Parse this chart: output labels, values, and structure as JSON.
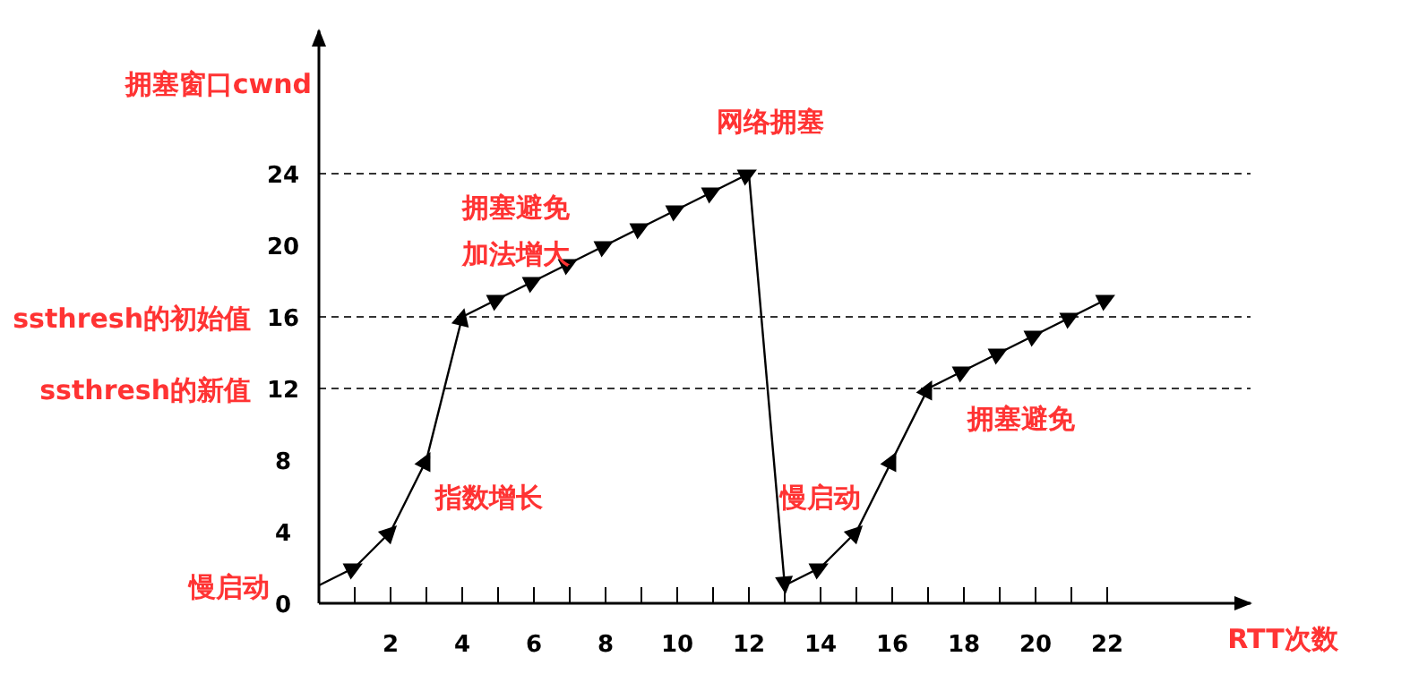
{
  "chart_data": {
    "type": "line",
    "xlabel": "RTT次数",
    "ylabel": "拥塞窗口cwnd",
    "x": [
      0,
      1,
      2,
      3,
      4,
      5,
      6,
      7,
      8,
      9,
      10,
      11,
      12,
      13,
      14,
      15,
      16,
      17,
      18,
      19,
      20,
      21,
      22
    ],
    "series": [
      {
        "color": "#000000",
        "values": [
          1,
          2,
          4,
          8,
          16,
          17,
          18,
          19,
          20,
          21,
          22,
          23,
          24,
          1,
          2,
          4,
          8,
          12,
          13,
          14,
          15,
          16,
          17
        ]
      }
    ],
    "marker": "triangle",
    "line_style": "solid",
    "grid": false,
    "xlim": [
      0,
      26
    ],
    "ylim": [
      0,
      32
    ],
    "xticks": [
      {
        "value": 1,
        "label": null
      },
      2,
      {
        "value": 3,
        "label": null
      },
      4,
      {
        "value": 5,
        "label": null
      },
      6,
      {
        "value": 7,
        "label": null
      },
      8,
      {
        "value": 9,
        "label": null
      },
      10,
      {
        "value": 11,
        "label": null
      },
      12,
      {
        "value": 13,
        "label": null
      },
      14,
      {
        "value": 15,
        "label": null
      },
      16,
      {
        "value": 17,
        "label": null
      },
      18,
      {
        "value": 19,
        "label": null
      },
      20,
      {
        "value": 21,
        "label": null
      },
      22
    ],
    "yticks": [
      0,
      4,
      8,
      12,
      16,
      20,
      24
    ],
    "ref_lines": [
      {
        "axis": "y",
        "value": 24,
        "label": null,
        "color": "#333333",
        "line_style": "dashed"
      },
      {
        "axis": "y",
        "value": 16,
        "label": "ssthresh的初始值",
        "color": "#333333",
        "line_style": "dashed"
      },
      {
        "axis": "y",
        "value": 12,
        "label": "ssthresh的新值",
        "color": "#333333",
        "line_style": "dashed"
      }
    ],
    "annotations": [
      "网络拥塞",
      "拥塞避免",
      "加法增大",
      "指数增长",
      "慢启动",
      "慢启动",
      "拥塞避免"
    ]
  }
}
